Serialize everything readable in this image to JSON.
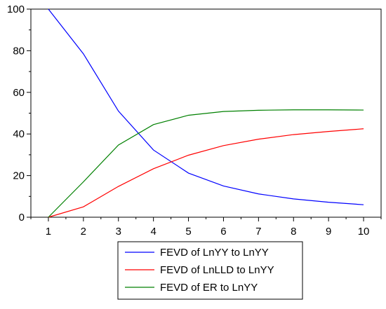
{
  "chart_data": {
    "type": "line",
    "title": "",
    "xlabel": "",
    "ylabel": "",
    "x": [
      1,
      2,
      3,
      4,
      5,
      6,
      7,
      8,
      9,
      10
    ],
    "xlim": [
      0.5,
      10.5
    ],
    "ylim": [
      0,
      100
    ],
    "x_ticks": [
      "1",
      "2",
      "3",
      "4",
      "5",
      "6",
      "7",
      "8",
      "9",
      "10"
    ],
    "y_ticks": [
      "0",
      "20",
      "40",
      "60",
      "80",
      "100"
    ],
    "grid": false,
    "legend_position": "bottom-center",
    "series": [
      {
        "name": "FEVD of LnYY to LnYY",
        "color": "#0000ff",
        "values": [
          100,
          78.5,
          51,
          32.3,
          21.2,
          15.0,
          11.2,
          8.8,
          7.2,
          6.0
        ]
      },
      {
        "name": "FEVD of LnLLD to LnYY",
        "color": "#ff0000",
        "values": [
          0,
          5.0,
          14.8,
          23.3,
          29.8,
          34.4,
          37.5,
          39.7,
          41.2,
          42.5
        ]
      },
      {
        "name": "FEVD of ER to LnYY",
        "color": "#008000",
        "values": [
          0,
          17.0,
          34.7,
          44.5,
          49.0,
          50.8,
          51.4,
          51.6,
          51.6,
          51.5
        ]
      }
    ]
  }
}
